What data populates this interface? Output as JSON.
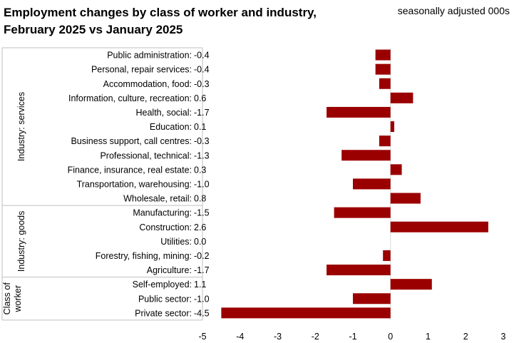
{
  "chart_data": {
    "type": "bar",
    "orientation": "horizontal",
    "title_line1": "Employment changes by class of worker and industry,",
    "title_line2": "February 2025 vs January 2025",
    "subtitle": "seasonally adjusted 000s",
    "xlim": [
      -5,
      3
    ],
    "xticks": [
      "-5",
      "-4",
      "-3",
      "-2",
      "-1",
      "0",
      "1",
      "2",
      "3"
    ],
    "bar_color": "#9b0000",
    "groups": [
      {
        "label": "Industry: services",
        "start": 0,
        "end": 10
      },
      {
        "label": "Industry: goods",
        "start": 11,
        "end": 15
      },
      {
        "label_lines": [
          "Class of",
          "worker"
        ],
        "start": 16,
        "end": 18
      }
    ],
    "categories": [
      {
        "label": "Public administration:",
        "value": -0.4,
        "value_label": "-0.4"
      },
      {
        "label": "Personal, repair services:",
        "value": -0.4,
        "value_label": "-0.4"
      },
      {
        "label": "Accommodation, food:",
        "value": -0.3,
        "value_label": "-0.3"
      },
      {
        "label": "Information, culture, recreation:",
        "value": 0.6,
        "value_label": "0.6"
      },
      {
        "label": "Health, social:",
        "value": -1.7,
        "value_label": "-1.7"
      },
      {
        "label": "Education:",
        "value": 0.1,
        "value_label": "0.1"
      },
      {
        "label": "Business support, call centres:",
        "value": -0.3,
        "value_label": "-0.3"
      },
      {
        "label": "Professional, technical:",
        "value": -1.3,
        "value_label": "-1.3"
      },
      {
        "label": "Finance, insurance, real estate:",
        "value": 0.3,
        "value_label": "0.3"
      },
      {
        "label": "Transportation, warehousing:",
        "value": -1.0,
        "value_label": "-1.0"
      },
      {
        "label": "Wholesale, retail:",
        "value": 0.8,
        "value_label": "0.8"
      },
      {
        "label": "Manufacturing:",
        "value": -1.5,
        "value_label": "-1.5"
      },
      {
        "label": "Construction:",
        "value": 2.6,
        "value_label": "2.6"
      },
      {
        "label": "Utilities:",
        "value": 0.0,
        "value_label": "0.0"
      },
      {
        "label": "Forestry, fishing, mining:",
        "value": -0.2,
        "value_label": "-0.2"
      },
      {
        "label": "Agriculture:",
        "value": -1.7,
        "value_label": "-1.7"
      },
      {
        "label": "Self-employed:",
        "value": 1.1,
        "value_label": "1.1"
      },
      {
        "label": "Public sector:",
        "value": -1.0,
        "value_label": "-1.0"
      },
      {
        "label": "Private sector:",
        "value": -4.5,
        "value_label": "-4.5"
      }
    ]
  }
}
